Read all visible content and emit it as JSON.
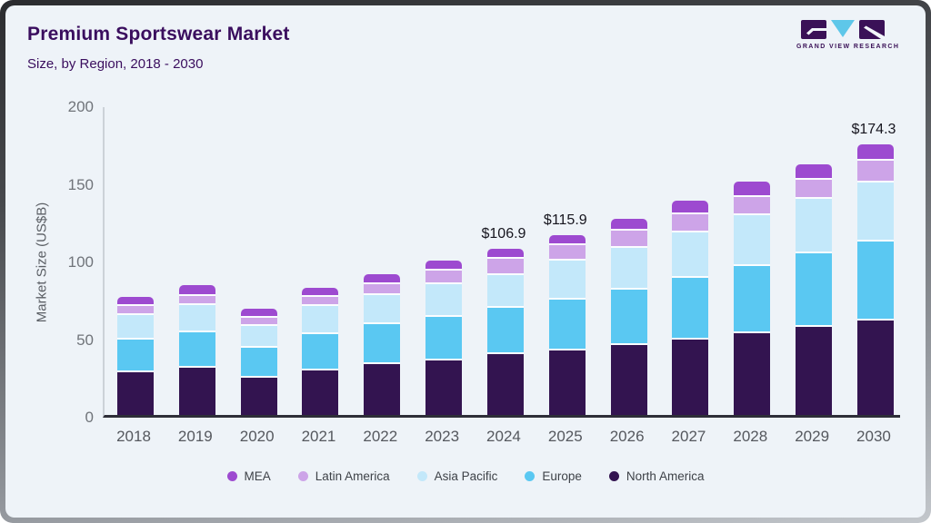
{
  "header": {
    "title": "Premium Sportswear Market",
    "subtitle": "Size, by Region, 2018 - 2030",
    "logo_text": "GRAND VIEW RESEARCH"
  },
  "theme": {
    "card_background": "#eef3f8",
    "title_color": "#3a0e5e",
    "axis_text_color": "#70747a",
    "value_label_color": "#16151e",
    "logo_purple": "#3a1157",
    "logo_blue": "#5ec7e9"
  },
  "chart_data": {
    "type": "bar",
    "stacked": true,
    "title": "Premium Sportswear Market",
    "subtitle": "Size, by Region, 2018 - 2030",
    "xlabel": "",
    "ylabel": "Market Size (US$B)",
    "ylim": [
      0,
      200
    ],
    "yticks": [
      "0",
      "50",
      "100",
      "150",
      "200"
    ],
    "grid": false,
    "legend_position": "bottom",
    "categories": [
      "2018",
      "2019",
      "2020",
      "2021",
      "2022",
      "2023",
      "2024",
      "2025",
      "2026",
      "2027",
      "2028",
      "2029",
      "2030"
    ],
    "series": [
      {
        "name": "North America",
        "color": "#331450",
        "values": [
          27.4,
          30.3,
          24.2,
          28.6,
          32.7,
          35.2,
          39.1,
          41.3,
          44.8,
          48.3,
          52.4,
          56.7,
          60.8
        ]
      },
      {
        "name": "Europe",
        "color": "#5ac8f2",
        "values": [
          21.1,
          23.0,
          19.2,
          23.3,
          26.0,
          28.0,
          29.9,
          32.8,
          36.1,
          39.9,
          43.4,
          47.2,
          50.9
        ]
      },
      {
        "name": "Asia Pacific",
        "color": "#c3e8fa",
        "values": [
          16.0,
          17.6,
          13.7,
          18.4,
          18.8,
          21.3,
          21.1,
          25.4,
          27.0,
          29.3,
          32.7,
          35.0,
          38.1
        ]
      },
      {
        "name": "Latin America",
        "color": "#cda4e8",
        "values": [
          5.5,
          5.7,
          5.5,
          5.5,
          7.0,
          8.4,
          10.6,
          9.8,
          10.6,
          11.7,
          11.9,
          12.7,
          14.1
        ]
      },
      {
        "name": "MEA",
        "color": "#9d4ad0",
        "values": [
          6.0,
          7.0,
          5.9,
          5.9,
          6.3,
          6.5,
          6.2,
          6.6,
          7.9,
          8.8,
          9.8,
          9.8,
          10.4
        ]
      }
    ],
    "legend_order": [
      "MEA",
      "Latin America",
      "Asia Pacific",
      "Europe",
      "North America"
    ],
    "annotations": [
      {
        "category": "2024",
        "text": "$106.9"
      },
      {
        "category": "2025",
        "text": "$115.9"
      },
      {
        "category": "2030",
        "text": "$174.3"
      }
    ]
  }
}
